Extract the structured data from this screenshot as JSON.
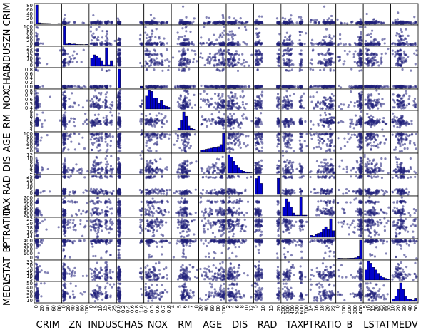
{
  "chart_data": {
    "type": "scatter_matrix",
    "title": "",
    "variables": [
      "CRIM",
      "ZN",
      "INDUS",
      "CHAS",
      "NOX",
      "RM",
      "AGE",
      "DIS",
      "RAD",
      "TAX",
      "PTRATIO",
      "B",
      "LSTAT",
      "MEDV"
    ],
    "ranges": {
      "CRIM": [
        0,
        89
      ],
      "ZN": [
        0,
        100
      ],
      "INDUS": [
        0,
        28
      ],
      "CHAS": [
        0,
        1
      ],
      "NOX": [
        0.38,
        0.88
      ],
      "RM": [
        3.5,
        8.8
      ],
      "AGE": [
        0,
        100
      ],
      "DIS": [
        1,
        12.2
      ],
      "RAD": [
        1,
        24
      ],
      "TAX": [
        187,
        711
      ],
      "PTRATIO": [
        12.6,
        22
      ],
      "B": [
        0,
        397
      ],
      "LSTAT": [
        1.7,
        38
      ],
      "MEDV": [
        5,
        50
      ]
    },
    "tick_labels": {
      "CRIM": {
        "bottom": [
          "0",
          "20",
          "40",
          "60",
          "80"
        ],
        "left": [
          "0",
          "20",
          "40",
          "60",
          "80"
        ]
      },
      "ZN": {
        "bottom": [
          "0",
          "20",
          "40",
          "60",
          "80",
          "100"
        ],
        "left": [
          "0",
          "20",
          "40",
          "60",
          "80",
          "100"
        ]
      },
      "INDUS": {
        "bottom": [
          "0",
          "5",
          "10",
          "15",
          "20",
          "25"
        ],
        "left": [
          "0",
          "5",
          "10",
          "15",
          "20",
          "25"
        ]
      },
      "CHAS": {
        "bottom": [
          "0.0",
          "0.2",
          "0.4",
          "0.6",
          "0.8",
          "1.0"
        ],
        "left": [
          "0.0",
          "0.2",
          "0.4",
          "0.6",
          "0.8"
        ]
      },
      "NOX": {
        "bottom": [
          "0.4",
          "0.5",
          "0.6",
          "0.7",
          "0.8"
        ],
        "left": [
          "0.4",
          "0.5",
          "0.6",
          "0.7",
          "0.8"
        ]
      },
      "RM": {
        "bottom": [
          "4",
          "5",
          "6",
          "7",
          "8"
        ],
        "left": [
          "4",
          "5",
          "6",
          "7",
          "8",
          "9"
        ]
      },
      "AGE": {
        "bottom": [
          "20",
          "40",
          "60",
          "80",
          "100"
        ],
        "left": [
          "0",
          "20",
          "40",
          "60",
          "80",
          "100"
        ]
      },
      "DIS": {
        "bottom": [
          "2",
          "4",
          "6",
          "8",
          "10",
          "12"
        ],
        "left": [
          "2",
          "4",
          "6",
          "8",
          "10",
          "12"
        ]
      },
      "RAD": {
        "bottom": [
          "5",
          "10",
          "15",
          "20"
        ],
        "left": [
          "0",
          "5",
          "10",
          "15",
          "20",
          "25"
        ]
      },
      "TAX": {
        "bottom": [
          "200",
          "300",
          "400",
          "500",
          "600",
          "700"
        ],
        "left": [
          "200",
          "300",
          "400",
          "500",
          "600",
          "700"
        ]
      },
      "PTRATIO": {
        "bottom": [
          "14",
          "16",
          "18",
          "20",
          "22"
        ],
        "left": [
          "14",
          "16",
          "18",
          "20",
          "22"
        ]
      },
      "B": {
        "bottom": [
          "0",
          "100",
          "200",
          "300",
          "400"
        ],
        "left": [
          "0",
          "100",
          "200",
          "300",
          "400"
        ]
      },
      "LSTAT": {
        "bottom": [
          "5",
          "10",
          "15",
          "20",
          "25",
          "30",
          "35"
        ],
        "left": [
          "5",
          "10",
          "15",
          "20",
          "25",
          "30",
          "35"
        ]
      },
      "MEDV": {
        "bottom": [
          "10",
          "20",
          "30",
          "40",
          "50"
        ],
        "left": [
          "10",
          "20",
          "30",
          "40",
          "50"
        ]
      }
    },
    "diagonal": "histogram",
    "diagonal_bins": {
      "CRIM": [
        470,
        18,
        8,
        5,
        3,
        1,
        0,
        0,
        0,
        1
      ],
      "ZN": [
        380,
        20,
        30,
        15,
        20,
        10,
        8,
        8,
        5,
        10
      ],
      "INDUS": [
        55,
        80,
        70,
        60,
        40,
        10,
        130,
        10,
        40,
        5
      ],
      "CHAS": [
        471,
        0,
        0,
        0,
        0,
        0,
        0,
        0,
        0,
        35
      ],
      "NOX": [
        70,
        100,
        95,
        60,
        60,
        30,
        45,
        20,
        15,
        10
      ],
      "RM": [
        3,
        5,
        25,
        95,
        170,
        130,
        40,
        18,
        12,
        5
      ],
      "AGE": [
        15,
        20,
        25,
        30,
        35,
        40,
        40,
        50,
        70,
        180
      ],
      "DIS": [
        140,
        120,
        90,
        60,
        40,
        25,
        15,
        10,
        5,
        3
      ],
      "RAD": [
        130,
        150,
        90,
        0,
        0,
        0,
        0,
        0,
        0,
        132
      ],
      "TAX": [
        60,
        120,
        100,
        60,
        20,
        5,
        5,
        130,
        5,
        5
      ],
      "PTRATIO": [
        15,
        10,
        20,
        30,
        40,
        60,
        80,
        60,
        140,
        50
      ],
      "B": [
        10,
        8,
        6,
        6,
        8,
        10,
        12,
        20,
        40,
        380
      ],
      "LSTAT": [
        60,
        110,
        100,
        75,
        60,
        40,
        25,
        15,
        10,
        5
      ],
      "MEDV": [
        20,
        40,
        90,
        140,
        90,
        40,
        20,
        15,
        10,
        25
      ]
    },
    "point_color": "#1f1f7a",
    "bar_color": "#0000cc"
  }
}
